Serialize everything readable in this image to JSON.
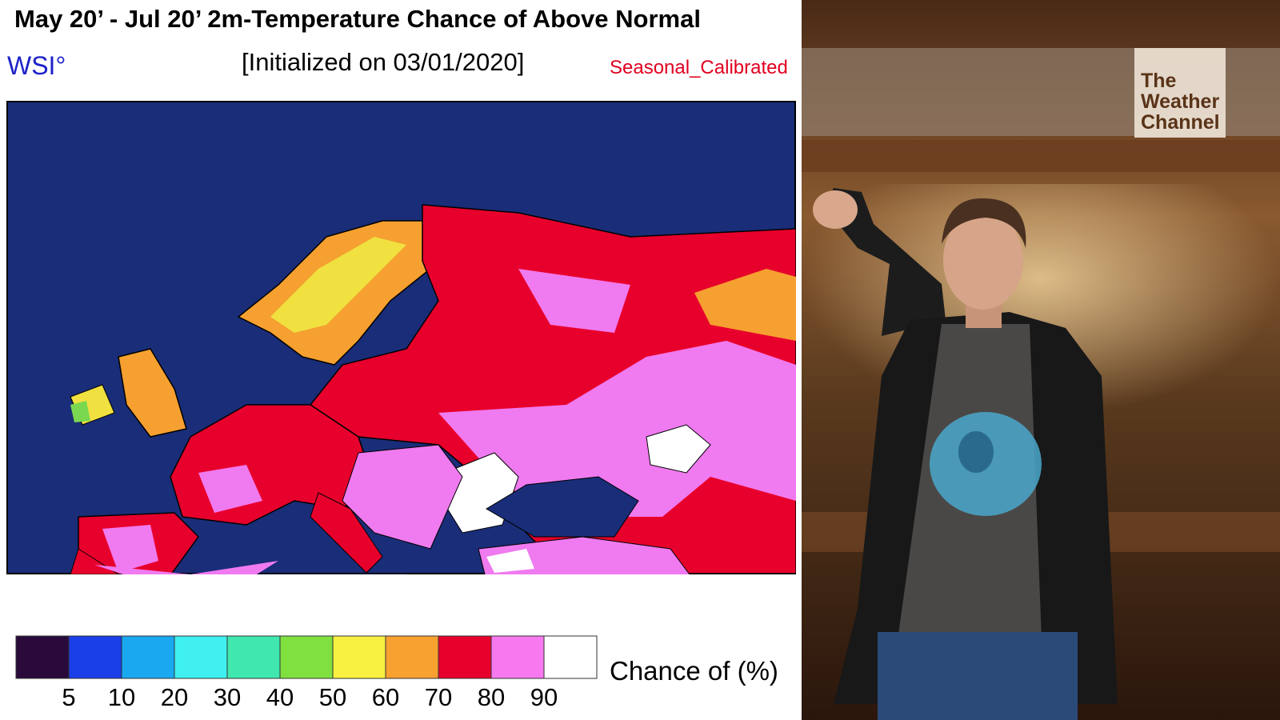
{
  "map": {
    "title": "May 20’ - Jul 20’ 2m-Temperature Chance of Above Normal",
    "provider": "WSI°",
    "initialized": "[Initialized on 03/01/2020]",
    "method": "Seasonal_Calibrated"
  },
  "legend": {
    "title": "Chance of (%)",
    "colors": [
      "#2a0a3a",
      "#1a3ee8",
      "#1aa8f0",
      "#40f0f0",
      "#40e8b0",
      "#80e040",
      "#f8f040",
      "#f8a030",
      "#e8002c",
      "#f878f0",
      "#ffffff"
    ],
    "ticks": [
      5,
      10,
      20,
      30,
      40,
      50,
      60,
      70,
      80,
      90
    ]
  },
  "logo": {
    "lines": [
      "The",
      "Weather",
      "Channel"
    ]
  }
}
